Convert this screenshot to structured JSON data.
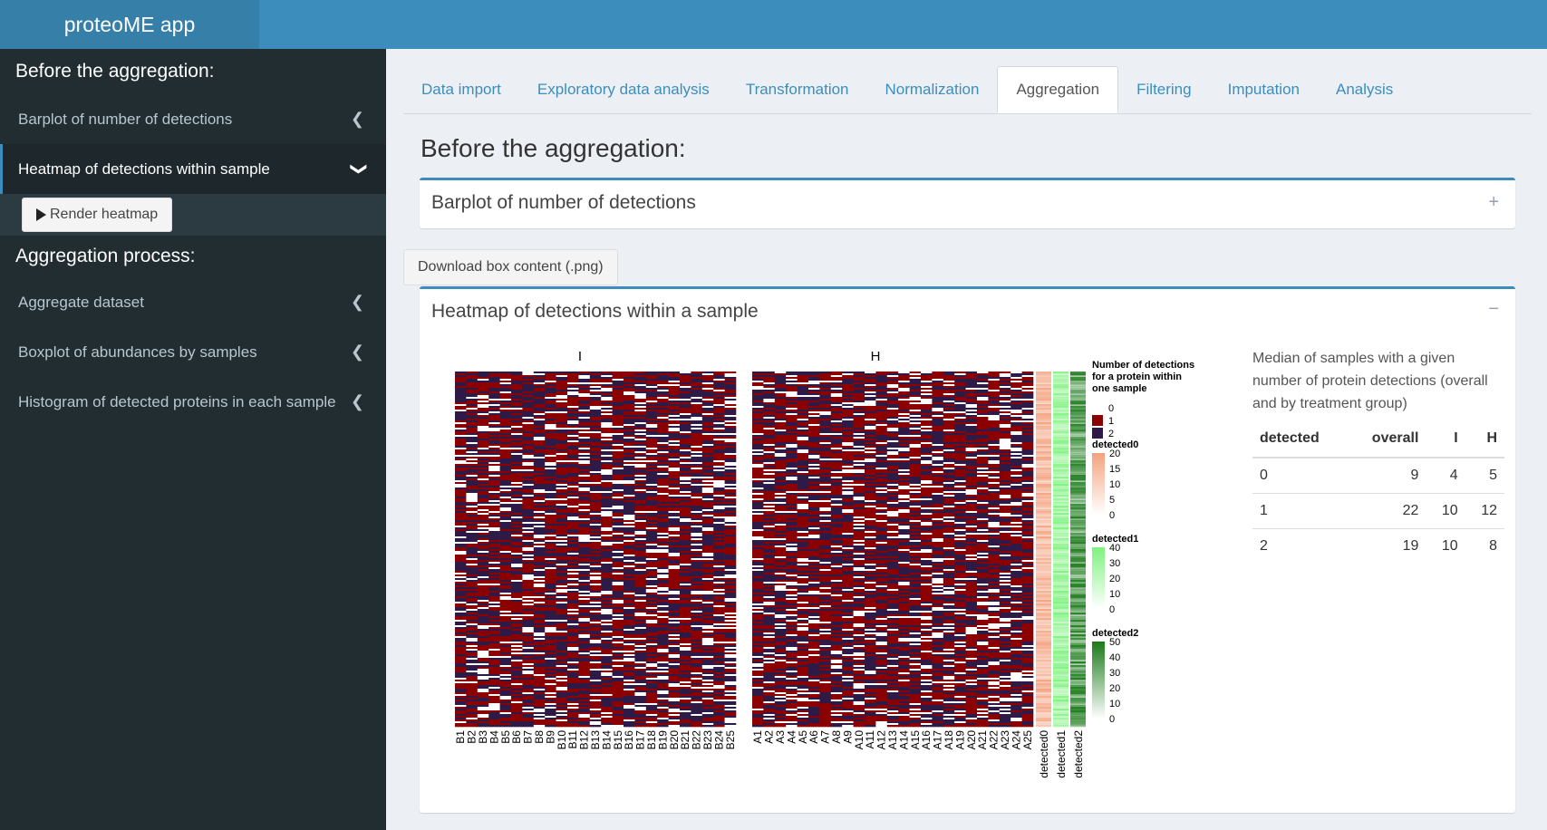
{
  "header": {
    "app_title": "proteoME app"
  },
  "sidebar": {
    "section1_title": "Before the aggregation:",
    "item_barplot": "Barplot of number of detections",
    "item_heatmap": "Heatmap of detections within sample",
    "render_button": "Render heatmap",
    "section2_title": "Aggregation process:",
    "item_aggregate": "Aggregate dataset",
    "item_boxplot": "Boxplot of abundances by samples",
    "item_histogram": "Histogram of detected proteins in each sample"
  },
  "tabs": [
    "Data import",
    "Exploratory data analysis",
    "Transformation",
    "Normalization",
    "Aggregation",
    "Filtering",
    "Imputation",
    "Analysis"
  ],
  "active_tab": "Aggregation",
  "main": {
    "page_title": "Before the aggregation:",
    "box1_title": "Barplot of number of detections",
    "box1_tool": "+",
    "download_button": "Download box content (.png)",
    "box2_title": "Heatmap of detections within a sample",
    "box2_tool": "−"
  },
  "heatmap": {
    "group_I_label": "I",
    "group_H_label": "H",
    "samples_I": [
      "B1",
      "B2",
      "B3",
      "B4",
      "B5",
      "B6",
      "B7",
      "B8",
      "B9",
      "B10",
      "B11",
      "B12",
      "B13",
      "B14",
      "B15",
      "B16",
      "B17",
      "B18",
      "B19",
      "B20",
      "B21",
      "B22",
      "B23",
      "B24",
      "B25"
    ],
    "samples_H": [
      "A1",
      "A2",
      "A3",
      "A4",
      "A5",
      "A6",
      "A7",
      "A8",
      "A9",
      "A10",
      "A11",
      "A12",
      "A13",
      "A14",
      "A15",
      "A16",
      "A17",
      "A18",
      "A19",
      "A20",
      "A21",
      "A22",
      "A23",
      "A24",
      "A25"
    ],
    "annotation_columns": [
      "detected0",
      "detected1",
      "detected2"
    ],
    "legend_title_lines": [
      "Number of detections",
      "for a protein within",
      "one sample"
    ],
    "legend_levels": [
      "0",
      "1",
      "2"
    ],
    "legend_level_colors": [
      "#ffffff",
      "#8b0000",
      "#2e1a47"
    ],
    "annotation_legends": [
      {
        "title": "detected0",
        "ticks": [
          "20",
          "15",
          "10",
          "5",
          "0"
        ],
        "color": "#f4a27f"
      },
      {
        "title": "detected1",
        "ticks": [
          "40",
          "30",
          "20",
          "10",
          "0"
        ],
        "color": "#7ef27e"
      },
      {
        "title": "detected2",
        "ticks": [
          "50",
          "40",
          "30",
          "20",
          "10",
          "0"
        ],
        "color": "#1a7a1a"
      }
    ]
  },
  "summary": {
    "caption": "Median of samples with a given number of protein detections (overall and by treatment group)",
    "headers": [
      "detected",
      "overall",
      "I",
      "H"
    ],
    "rows": [
      [
        "0",
        "9",
        "4",
        "5"
      ],
      [
        "1",
        "22",
        "10",
        "12"
      ],
      [
        "2",
        "19",
        "10",
        "8"
      ]
    ]
  },
  "colors": {
    "header": "#3c8dbc",
    "logo": "#367fa9",
    "sidebar": "#222d32",
    "accent": "#3c8dbc"
  }
}
